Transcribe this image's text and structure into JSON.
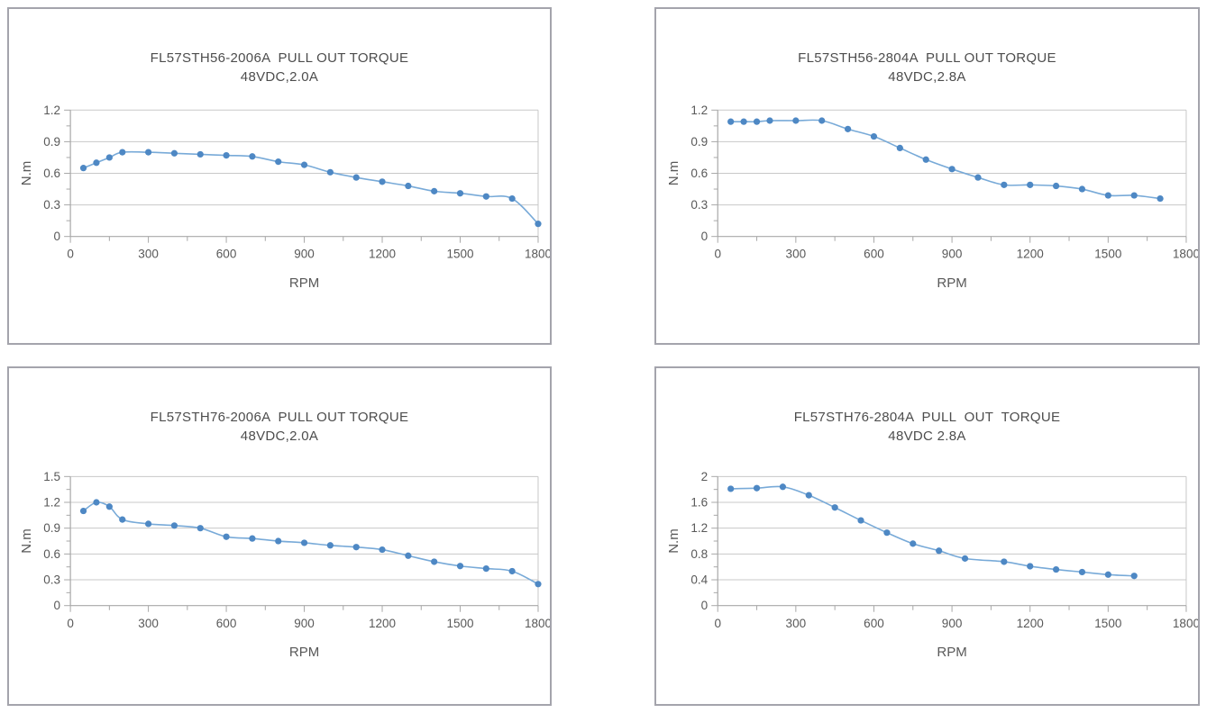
{
  "colors": {
    "line": "#78aad8",
    "marker": "#4e88c4",
    "grid": "#c8c8c8",
    "axis": "#a8a8a8",
    "tick_label": "#595959",
    "title": "#4d4d4d",
    "panel_border": "#a4a4ac",
    "panel_bg": "#ffffff"
  },
  "chart_data": [
    {
      "type": "line",
      "title_line1": "FL57STH56-2006A  PULL OUT TORQUE",
      "title_line2": "48VDC,2.0A",
      "xlabel": "RPM",
      "ylabel": "N.m",
      "xlim": [
        0,
        1800
      ],
      "ylim": [
        0,
        1.2
      ],
      "x_tick_labels": [
        "0",
        "300",
        "600",
        "900",
        "1200",
        "1500",
        "1800"
      ],
      "x_major_step": 300,
      "x_minor_step": 150,
      "y_tick_labels": [
        "0",
        "0.3",
        "0.6",
        "0.9",
        "1.2"
      ],
      "y_major_step": 0.3,
      "y_minor_step": 0.15,
      "grid": "horizontal",
      "legend": "none",
      "x": [
        50,
        100,
        150,
        200,
        300,
        400,
        500,
        600,
        700,
        800,
        900,
        1000,
        1100,
        1200,
        1300,
        1400,
        1500,
        1600,
        1700,
        1800
      ],
      "y": [
        0.65,
        0.7,
        0.75,
        0.8,
        0.8,
        0.79,
        0.78,
        0.77,
        0.76,
        0.71,
        0.68,
        0.61,
        0.56,
        0.52,
        0.48,
        0.43,
        0.41,
        0.38,
        0.36,
        0.12
      ]
    },
    {
      "type": "line",
      "title_line1": "FL57STH56-2804A  PULL OUT TORQUE",
      "title_line2": "48VDC,2.8A",
      "xlabel": "RPM",
      "ylabel": "N.m",
      "xlim": [
        0,
        1800
      ],
      "ylim": [
        0,
        1.2
      ],
      "x_tick_labels": [
        "0",
        "300",
        "600",
        "900",
        "1200",
        "1500",
        "1800"
      ],
      "x_major_step": 300,
      "x_minor_step": 150,
      "y_tick_labels": [
        "0",
        "0.3",
        "0.6",
        "0.9",
        "1.2"
      ],
      "y_major_step": 0.3,
      "y_minor_step": 0.15,
      "grid": "horizontal",
      "legend": "none",
      "x": [
        50,
        100,
        150,
        200,
        300,
        400,
        500,
        600,
        700,
        800,
        900,
        1000,
        1100,
        1200,
        1300,
        1400,
        1500,
        1600,
        1700
      ],
      "y": [
        1.09,
        1.09,
        1.09,
        1.1,
        1.1,
        1.1,
        1.02,
        0.95,
        0.84,
        0.73,
        0.64,
        0.56,
        0.49,
        0.49,
        0.48,
        0.45,
        0.39,
        0.39,
        0.36
      ]
    },
    {
      "type": "line",
      "title_line1": "FL57STH76-2006A  PULL OUT TORQUE",
      "title_line2": "48VDC,2.0A",
      "xlabel": "RPM",
      "ylabel": "N.m",
      "xlim": [
        0,
        1800
      ],
      "ylim": [
        0,
        1.5
      ],
      "x_tick_labels": [
        "0",
        "300",
        "600",
        "900",
        "1200",
        "1500",
        "1800"
      ],
      "x_major_step": 300,
      "x_minor_step": 150,
      "y_tick_labels": [
        "0",
        "0.3",
        "0.6",
        "0.9",
        "1.2",
        "1.5"
      ],
      "y_major_step": 0.3,
      "y_minor_step": 0.15,
      "grid": "horizontal",
      "legend": "none",
      "x": [
        50,
        100,
        150,
        200,
        300,
        400,
        500,
        600,
        700,
        800,
        900,
        1000,
        1100,
        1200,
        1300,
        1400,
        1500,
        1600,
        1700,
        1800
      ],
      "y": [
        1.1,
        1.2,
        1.15,
        1.0,
        0.95,
        0.93,
        0.9,
        0.8,
        0.78,
        0.75,
        0.73,
        0.7,
        0.68,
        0.65,
        0.58,
        0.51,
        0.46,
        0.43,
        0.4,
        0.25
      ]
    },
    {
      "type": "line",
      "title_line1": "FL57STH76-2804A  PULL  OUT  TORQUE",
      "title_line2": "48VDC 2.8A",
      "xlabel": "RPM",
      "ylabel": "N.m",
      "xlim": [
        0,
        1800
      ],
      "ylim": [
        0,
        2
      ],
      "x_tick_labels": [
        "0",
        "300",
        "600",
        "900",
        "1200",
        "1500",
        "1800"
      ],
      "x_major_step": 300,
      "x_minor_step": 150,
      "y_tick_labels": [
        "0",
        "0.4",
        "0.8",
        "1.2",
        "1.6",
        "2"
      ],
      "y_major_step": 0.4,
      "y_minor_step": 0.2,
      "grid": "horizontal",
      "legend": "none",
      "x": [
        50,
        150,
        250,
        350,
        450,
        550,
        650,
        750,
        850,
        950,
        1100,
        1200,
        1300,
        1400,
        1500,
        1600
      ],
      "y": [
        1.81,
        1.82,
        1.84,
        1.71,
        1.52,
        1.32,
        1.13,
        0.96,
        0.85,
        0.73,
        0.68,
        0.61,
        0.56,
        0.52,
        0.48,
        0.46
      ]
    }
  ]
}
